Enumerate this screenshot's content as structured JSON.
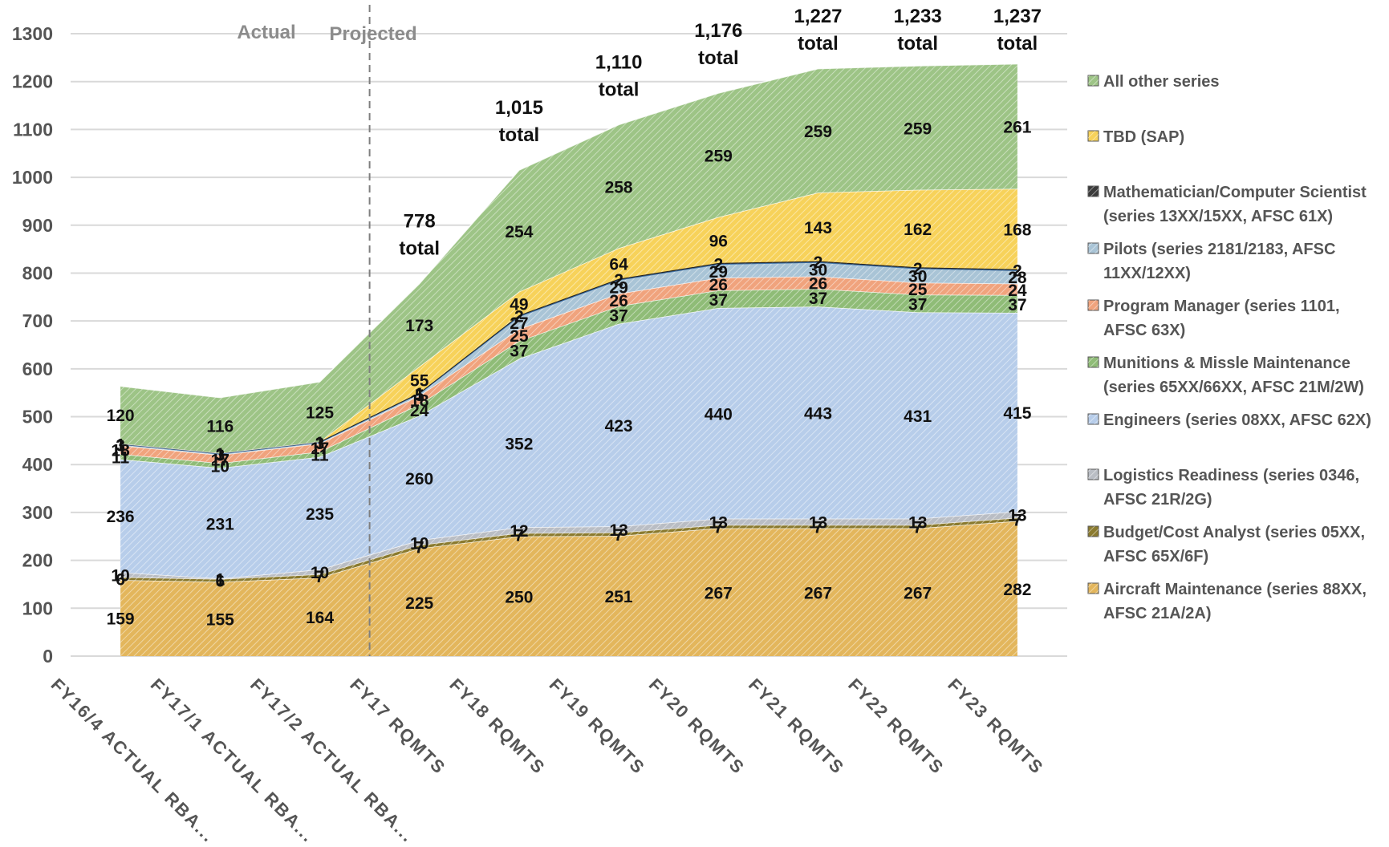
{
  "chart_data": {
    "type": "area",
    "stacked": true,
    "title": "",
    "xlabel": "",
    "ylabel": "",
    "ylim": [
      0,
      1300
    ],
    "yticks": [
      0,
      100,
      200,
      300,
      400,
      500,
      600,
      700,
      800,
      900,
      1000,
      1100,
      1200,
      1300
    ],
    "grid": true,
    "legend_position": "right",
    "categories": [
      "FY16/4 ACTUAL RBA...",
      "FY17/1 ACTUAL RBA...",
      "FY17/2 ACTUAL RBA...",
      "FY17 RQMTS",
      "FY18 RQMTS",
      "FY19 RQMTS",
      "FY20 RQMTS",
      "FY21 RQMTS",
      "FY22 RQMTS",
      "FY23 RQMTS"
    ],
    "section_labels": {
      "actual": "Actual",
      "projected": "Projected"
    },
    "totals": [
      null,
      null,
      null,
      "778",
      "1,015",
      "1,110",
      "1,176",
      "1,227",
      "1,233",
      "1,237"
    ],
    "total_word": "total",
    "series": [
      {
        "name": "Aircraft Maintenance (series 88XX, AFSC 21A/2A)",
        "legend_lines": [
          "Aircraft Maintenance (series 88XX,",
          "AFSC 21A/2A)"
        ],
        "color": "#e3b65c",
        "values": [
          159,
          155,
          164,
          225,
          250,
          251,
          267,
          267,
          267,
          282
        ]
      },
      {
        "name": "Budget/Cost Analyst (series 05XX, AFSC 65X/6F)",
        "legend_lines": [
          "Budget/Cost Analyst (series 05XX,",
          "AFSC 65X/6F)"
        ],
        "color": "#8a7a2e",
        "values": [
          6,
          6,
          7,
          7,
          7,
          7,
          7,
          7,
          7,
          7
        ]
      },
      {
        "name": "Logistics Readiness (series 0346, AFSC 21R/2G)",
        "legend_lines": [
          "Logistics Readiness (series 0346,",
          "AFSC 21R/2G)"
        ],
        "color": "#b9bdc4",
        "values": [
          10,
          1,
          10,
          10,
          12,
          13,
          13,
          13,
          13,
          13
        ]
      },
      {
        "name": "Engineers (series 08XX, AFSC 62X)",
        "legend_lines": [
          "Engineers (series 08XX, AFSC 62X)"
        ],
        "color": "#b7cdea",
        "values": [
          236,
          231,
          235,
          260,
          352,
          423,
          440,
          443,
          431,
          415
        ]
      },
      {
        "name": "Munitions & Missle Maintenance (series 65XX/66XX, AFSC 21M/2W)",
        "legend_lines": [
          "Munitions & Missle Maintenance",
          "(series 65XX/66XX, AFSC 21M/2W)"
        ],
        "color": "#8fbc77",
        "values": [
          11,
          10,
          11,
          24,
          37,
          37,
          37,
          37,
          37,
          37
        ]
      },
      {
        "name": "Program Manager (series 1101, AFSC 63X)",
        "legend_lines": [
          "Program Manager (series 1101,",
          "AFSC 63X)"
        ],
        "color": "#f0a37d",
        "values": [
          18,
          17,
          17,
          18,
          25,
          26,
          26,
          26,
          25,
          24
        ]
      },
      {
        "name": "Pilots (series 2181/2183, AFSC 11XX/12XX)",
        "legend_lines": [
          "Pilots (series 2181/2183, AFSC",
          "11XX/12XX)"
        ],
        "color": "#a9c4d6",
        "values": [
          3,
          3,
          3,
          5,
          27,
          29,
          29,
          30,
          30,
          28
        ]
      },
      {
        "name": "Mathematician/Computer Scientist (series 13XX/15XX, AFSC 61X)",
        "legend_lines": [
          "Mathematician/Computer Scientist",
          "(series 13XX/15XX, AFSC 61X)"
        ],
        "color": "#3a3a3a",
        "values": [
          1,
          1,
          1,
          1,
          2,
          2,
          2,
          2,
          2,
          2
        ]
      },
      {
        "name": "TBD (SAP)",
        "legend_lines": [
          "TBD (SAP)"
        ],
        "color": "#f7d25a",
        "values": [
          0,
          0,
          0,
          55,
          49,
          64,
          96,
          143,
          162,
          168
        ]
      },
      {
        "name": "All other series",
        "legend_lines": [
          "All other series"
        ],
        "color": "#9dc486",
        "values": [
          120,
          116,
          125,
          173,
          254,
          258,
          259,
          259,
          259,
          261
        ]
      }
    ],
    "data_labels": [
      [
        "159",
        "155",
        "164",
        "225",
        "250",
        "251",
        "267",
        "267",
        "267",
        "282"
      ],
      [
        "6",
        "6",
        "7",
        "7",
        "7",
        "7",
        "7",
        "7",
        "7",
        "7"
      ],
      [
        "10",
        "1",
        "10",
        "10",
        "12",
        "13",
        "13",
        "13",
        "13",
        "13"
      ],
      [
        "236",
        "231",
        "235",
        "260",
        "352",
        "423",
        "440",
        "443",
        "431",
        "415"
      ],
      [
        "11",
        "10",
        "11",
        "24",
        "37",
        "37",
        "37",
        "37",
        "37",
        "37"
      ],
      [
        "18",
        "17",
        "17",
        "18",
        "25",
        "26",
        "26",
        "26",
        "25",
        "24"
      ],
      [
        "3",
        "3",
        "3",
        "5",
        "27",
        "29",
        "29",
        "30",
        "30",
        "28"
      ],
      [
        "1",
        "1",
        "1",
        "1",
        "2",
        "2",
        "2",
        "2",
        "2",
        "2"
      ],
      [
        null,
        null,
        null,
        "55",
        "49",
        "64",
        "96",
        "143",
        "162",
        "168"
      ],
      [
        "120",
        "116",
        "125",
        "173",
        "254",
        "258",
        "259",
        "259",
        "259",
        "261"
      ]
    ]
  }
}
